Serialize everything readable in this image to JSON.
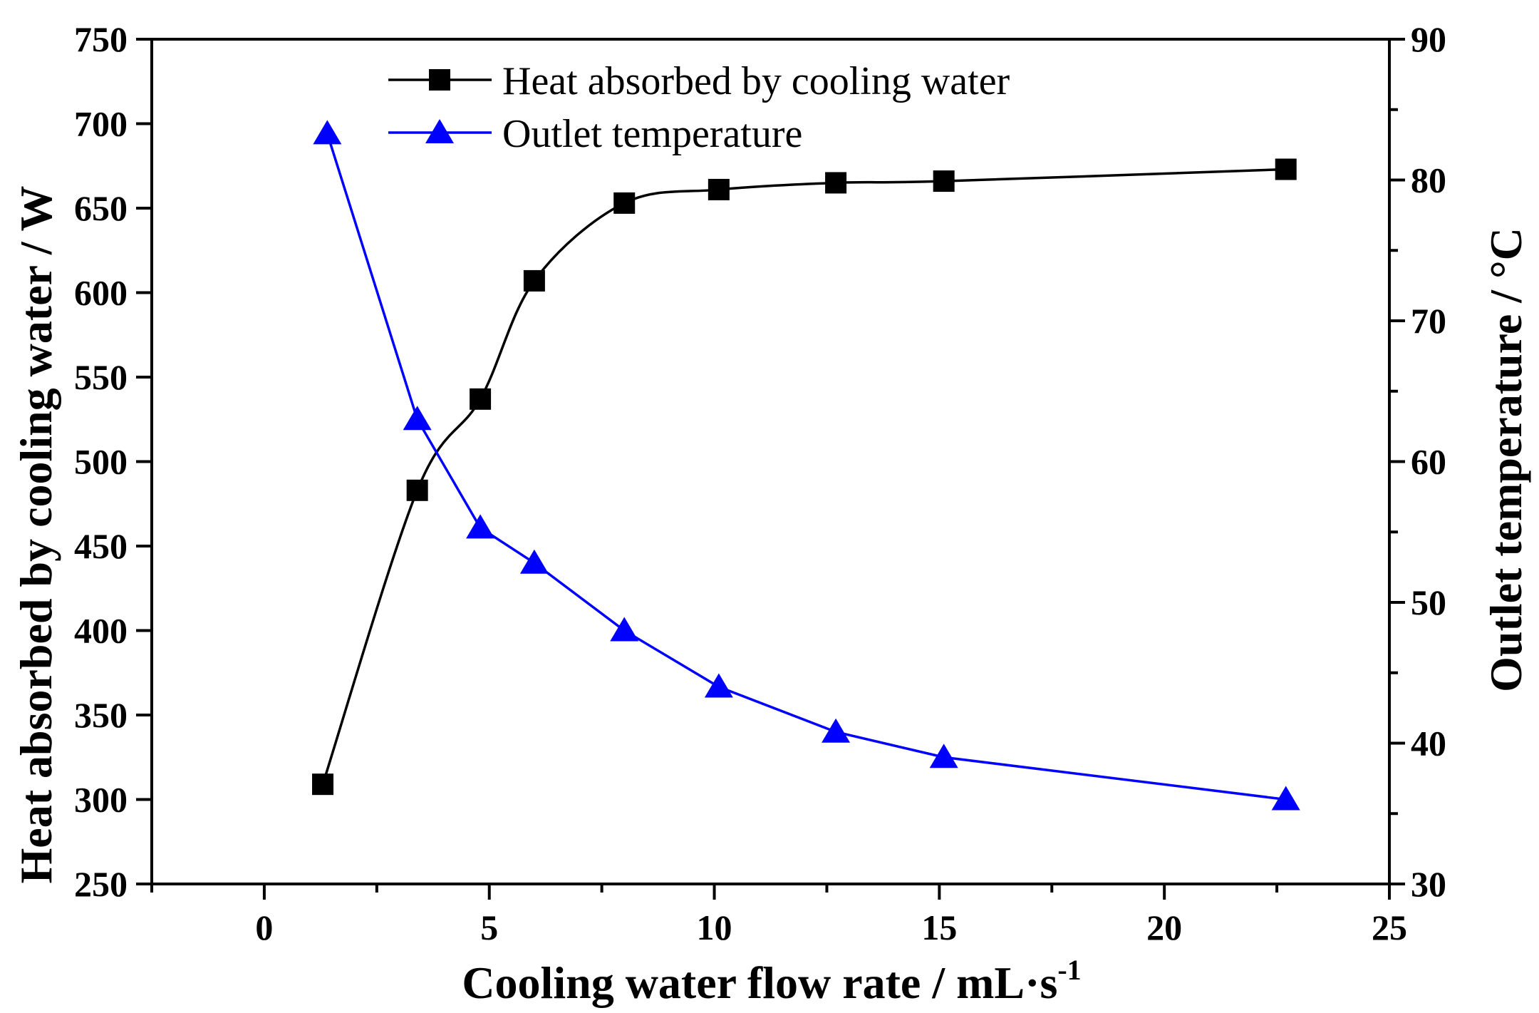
{
  "chart_data": {
    "type": "line",
    "title": "",
    "xlabel": "Cooling water flow rate / mL·s",
    "xlabel_superscript": "-1",
    "ylabel_left": "Heat absorbed by cooling water / W",
    "ylabel_right": "Outlet temperature / °C",
    "xlim": [
      -2.5,
      25
    ],
    "ylim_left": [
      250,
      750
    ],
    "ylim_right": [
      30,
      90
    ],
    "xticks": [
      0,
      5,
      10,
      15,
      20,
      25
    ],
    "xticks_minor": [
      -2.5,
      2.5,
      7.5,
      12.5,
      17.5,
      22.5
    ],
    "yticks_left": [
      250,
      300,
      350,
      400,
      450,
      500,
      550,
      600,
      650,
      700,
      750
    ],
    "yticks_right": [
      30,
      40,
      50,
      60,
      70,
      80,
      90
    ],
    "legend_position": "top-center",
    "series": [
      {
        "name": "Heat absorbed by cooling water",
        "axis": "left",
        "color": "#000000",
        "marker": "square",
        "line": "smooth",
        "x": [
          1.3,
          3.4,
          4.8,
          6.0,
          8.0,
          10.1,
          12.7,
          15.1,
          22.7
        ],
        "values": [
          309,
          483,
          537,
          607,
          653,
          661,
          665,
          666,
          673
        ]
      },
      {
        "name": "Outlet temperature",
        "axis": "right",
        "color": "#0000ff",
        "marker": "triangle",
        "line": "straight",
        "x": [
          1.4,
          3.4,
          4.8,
          6.0,
          8.0,
          10.1,
          12.7,
          15.1,
          22.7
        ],
        "values": [
          83.3,
          63.0,
          55.3,
          52.8,
          48.0,
          44.0,
          40.8,
          39.0,
          36.0
        ]
      }
    ]
  }
}
